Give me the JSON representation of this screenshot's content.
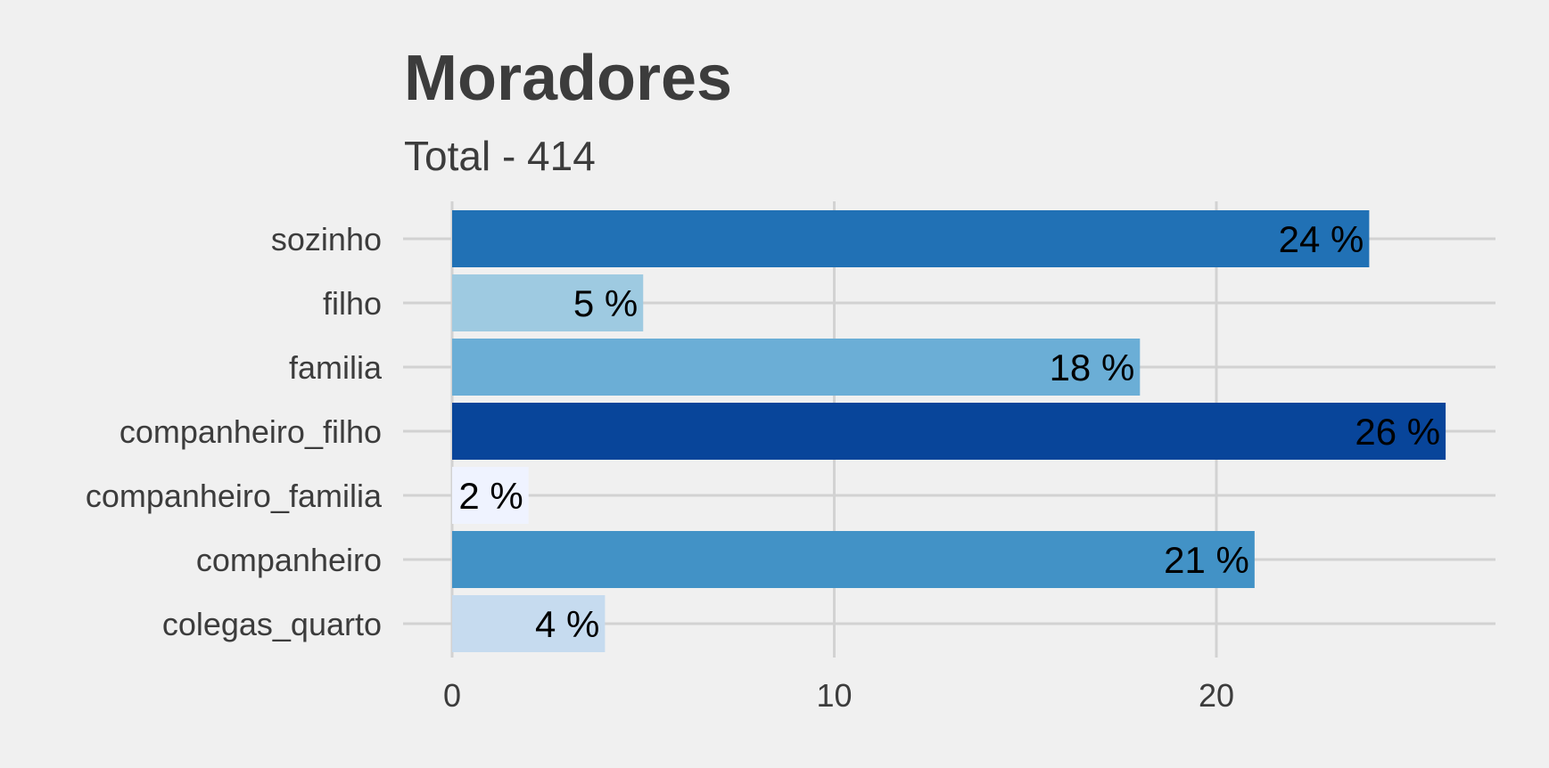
{
  "chart_data": {
    "type": "bar",
    "orientation": "horizontal",
    "title": "Moradores",
    "subtitle": "Total - 414",
    "xlabel": "",
    "ylabel": "",
    "categories": [
      "sozinho",
      "filho",
      "familia",
      "companheiro_filho",
      "companheiro_familia",
      "companheiro",
      "colegas_quarto"
    ],
    "values": [
      24,
      5,
      18,
      26,
      2,
      21,
      4
    ],
    "data_labels": [
      "24 %",
      "5 %",
      "18 %",
      "26 %",
      "2 %",
      "21 %",
      "4 %"
    ],
    "bar_colors": [
      "#2171b5",
      "#9ecae1",
      "#6baed6",
      "#08459a",
      "#eff3ff",
      "#4292c6",
      "#c6dbef"
    ],
    "x_ticks": [
      0,
      10,
      20
    ],
    "x_tick_labels": [
      "0",
      "10",
      "20"
    ],
    "xlim": [
      0,
      27.3
    ],
    "grid": true,
    "legend": "none",
    "colors": {
      "background": "#f0f0f0",
      "grid": "#d2d2d2",
      "text": "#3c3c3c"
    }
  }
}
